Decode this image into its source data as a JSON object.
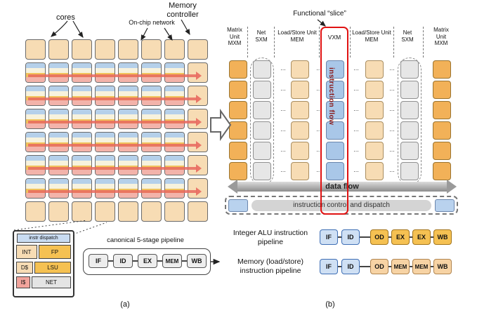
{
  "figure": {
    "caption_a": "(a)",
    "caption_b": "(b)"
  },
  "panel_a": {
    "cores_label": "cores",
    "network_label": "On-chip network",
    "memctrl_label": [
      "Memory",
      "controller"
    ],
    "detail": {
      "dispatch": "instr dispatch",
      "int": "INT",
      "fp": "FP",
      "dcache": "D$",
      "lsu": "LSU",
      "icache": "I$",
      "net": "NET"
    },
    "pipeline": {
      "title": "canonical 5-stage pipeline",
      "stages": [
        "IF",
        "ID",
        "EX",
        "MEM",
        "WB"
      ]
    },
    "grid": {
      "rows": 8,
      "cols": 8
    }
  },
  "panel_b": {
    "title": "Functional “slice”",
    "headers": [
      {
        "line1": "Matrix",
        "line2": "Unit",
        "line3": "MXM"
      },
      {
        "line1": "Net",
        "line2": "SXM"
      },
      {
        "line1": "Load/Store Unit",
        "line2": "MEM"
      },
      {
        "line1": "VXM"
      },
      {
        "line1": "Load/Store Unit",
        "line2": "MEM"
      },
      {
        "line1": "Net",
        "line2": "SXM"
      },
      {
        "line1": "Matrix",
        "line2": "Unit",
        "line3": "MXM"
      }
    ],
    "instruction_flow": "instruction flow",
    "data_flow": "data flow",
    "dispatch_label": "instruction control and dispatch",
    "ellipsis": "...",
    "rows": 6,
    "pipelines": [
      {
        "label": [
          "Integer ALU instruction",
          "pipeline"
        ],
        "stages": [
          "IF",
          "ID",
          "OD",
          "EX",
          "EX",
          "WB"
        ]
      },
      {
        "label": [
          "Memory (load/store)",
          "instruction pipeline"
        ],
        "stages": [
          "IF",
          "ID",
          "OD",
          "MEM",
          "MEM",
          "WB"
        ]
      }
    ]
  },
  "colors": {
    "slice_outline": "#e01212",
    "mxm_tile": "#f2b158",
    "net_tile": "#e6e6e6",
    "mem_tile": "#f7dcb4",
    "vxm_tile": "#a9c7e8",
    "plain_tile": "#f7dcb4",
    "core_stripe_blue": "#b5d0ea",
    "core_stripe_yellow": "#f1c35c",
    "core_stripe_pink": "#f3b3aa"
  }
}
